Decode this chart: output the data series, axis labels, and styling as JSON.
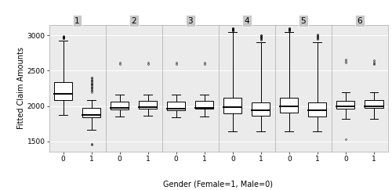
{
  "title": "",
  "ylabel": "Fitted Claim Amounts",
  "xlabel": "Gender (Female=1, Male=0)",
  "panels": [
    "1",
    "2",
    "3",
    "4",
    "5",
    "6"
  ],
  "ylim": [
    1350,
    3150
  ],
  "yticks": [
    1500,
    2000,
    2500,
    3000
  ],
  "background_color": "#ebebeb",
  "panel_label_bg": "#c8c8c8",
  "box_facecolor": "white",
  "box_edgecolor": "black",
  "boxes": {
    "1": {
      "0": {
        "q1": 2080,
        "median": 2175,
        "q3": 2340,
        "whislo": 1870,
        "whishi": 2920,
        "fliers_high": [
          2960,
          2970,
          2975,
          2980,
          2985,
          2990,
          2960,
          2970
        ],
        "fliers_low": []
      },
      "1": {
        "q1": 1840,
        "median": 1870,
        "q3": 1970,
        "whislo": 1660,
        "whishi": 2080,
        "fliers_high": [
          2200,
          2215,
          2230,
          2250,
          2260,
          2275,
          2290,
          2300,
          2315,
          2330,
          2345,
          2360,
          2375,
          2390,
          2410
        ],
        "fliers_low": [
          1455,
          1470
        ]
      }
    },
    "2": {
      "0": {
        "q1": 1950,
        "median": 1970,
        "q3": 2060,
        "whislo": 1855,
        "whishi": 2160,
        "fliers_high": [
          2595,
          2615
        ],
        "fliers_low": []
      },
      "1": {
        "q1": 1960,
        "median": 1980,
        "q3": 2070,
        "whislo": 1860,
        "whishi": 2160,
        "fliers_high": [
          2590,
          2610
        ],
        "fliers_low": []
      }
    },
    "3": {
      "0": {
        "q1": 1940,
        "median": 1960,
        "q3": 2065,
        "whislo": 1840,
        "whishi": 2160,
        "fliers_high": [
          2590,
          2610
        ],
        "fliers_low": []
      },
      "1": {
        "q1": 1960,
        "median": 1975,
        "q3": 2075,
        "whislo": 1855,
        "whishi": 2165,
        "fliers_high": [
          2590,
          2615
        ],
        "fliers_low": []
      }
    },
    "4": {
      "0": {
        "q1": 1900,
        "median": 1990,
        "q3": 2115,
        "whislo": 1640,
        "whishi": 3050,
        "fliers_high": [
          3060,
          3070,
          3075,
          3080,
          3082,
          3085,
          3088,
          3090,
          3092,
          3095,
          3098,
          3100
        ],
        "fliers_low": []
      },
      "1": {
        "q1": 1860,
        "median": 1945,
        "q3": 2050,
        "whislo": 1640,
        "whishi": 2900,
        "fliers_high": [
          2940,
          2950,
          2960,
          2968,
          2975,
          2982,
          2990,
          2997,
          3005
        ],
        "fliers_low": []
      }
    },
    "5": {
      "0": {
        "q1": 1905,
        "median": 1995,
        "q3": 2120,
        "whislo": 1640,
        "whishi": 3050,
        "fliers_high": [
          3060,
          3070,
          3078,
          3083,
          3088,
          3093,
          3098,
          3103
        ],
        "fliers_low": []
      },
      "1": {
        "q1": 1850,
        "median": 1940,
        "q3": 2055,
        "whislo": 1640,
        "whishi": 2900,
        "fliers_high": [
          2950,
          2962,
          2972,
          2982,
          2992,
          3002,
          3010
        ],
        "fliers_low": []
      }
    },
    "6": {
      "0": {
        "q1": 1960,
        "median": 1995,
        "q3": 2070,
        "whislo": 1820,
        "whishi": 2200,
        "fliers_high": [
          2620,
          2640,
          2658
        ],
        "fliers_low": [
          1530
        ]
      },
      "1": {
        "q1": 1970,
        "median": 1998,
        "q3": 2085,
        "whislo": 1820,
        "whishi": 2200,
        "fliers_high": [
          2588,
          2608,
          2628,
          2648
        ],
        "fliers_low": []
      }
    }
  }
}
